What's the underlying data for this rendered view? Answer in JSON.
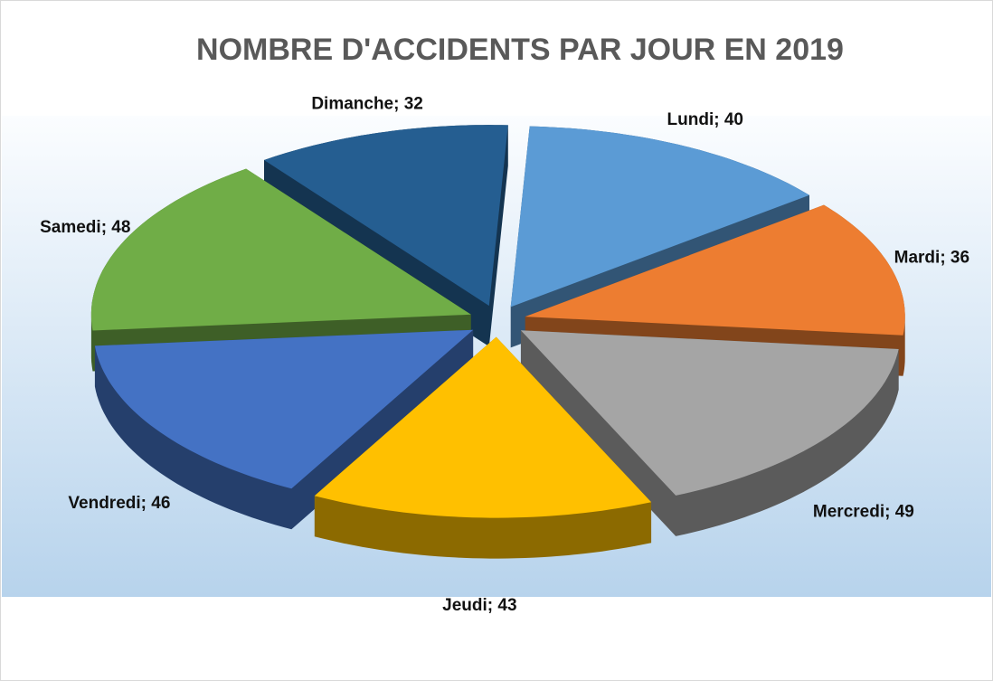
{
  "chart_data": {
    "type": "pie",
    "title": "NOMBRE D'ACCIDENTS PAR JOUR EN 2019",
    "values": [
      40,
      36,
      49,
      43,
      46,
      48,
      32
    ],
    "value_labels": [
      "Lundi; 40",
      "Mardi; 36",
      "Mercredi; 49",
      "Jeudi; 43",
      "Vendredi; 46",
      "Samedi; 48",
      "Dimanche; 32"
    ],
    "colors": [
      "#5b9bd5",
      "#ed7d31",
      "#a5a5a5",
      "#ffc000",
      "#4472c4",
      "#70ad47",
      "#255e91"
    ]
  }
}
